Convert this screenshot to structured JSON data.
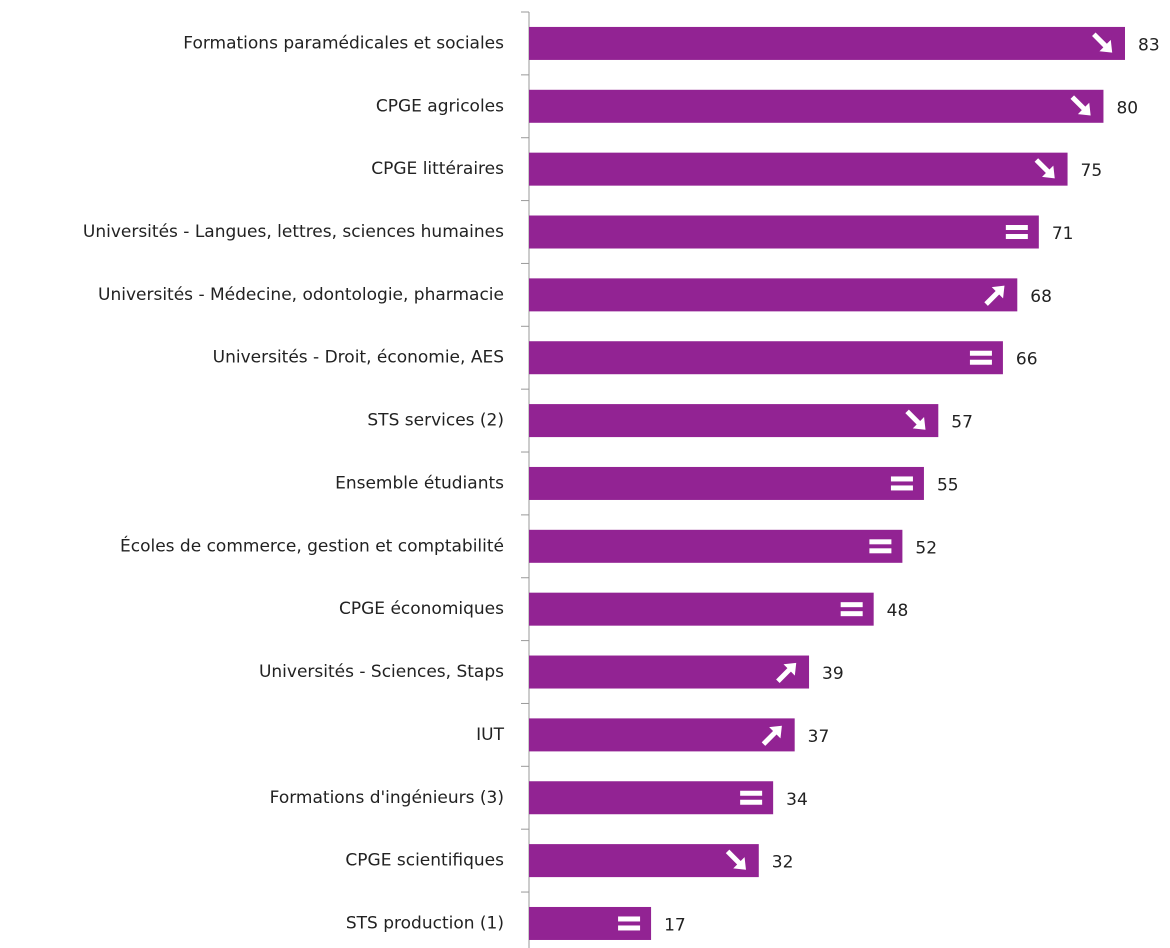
{
  "chart_data": {
    "type": "barh",
    "categories": [
      "Formations paramédicales et sociales",
      "CPGE agricoles",
      "CPGE littéraires",
      "Universités - Langues, lettres, sciences humaines",
      "Universités - Médecine, odontologie, pharmacie",
      "Universités - Droit, économie, AES",
      "STS services (2)",
      "Ensemble étudiants",
      "Écoles de commerce, gestion et comptabilité",
      "CPGE économiques",
      "Universités - Sciences, Staps",
      "IUT",
      "Formations d'ingénieurs (3)",
      "CPGE scientifiques",
      "STS production (1)"
    ],
    "values": [
      83,
      80,
      75,
      71,
      68,
      66,
      57,
      55,
      52,
      48,
      39,
      37,
      34,
      32,
      17
    ],
    "trend": [
      "down",
      "down",
      "down",
      "equal",
      "up",
      "equal",
      "down",
      "equal",
      "equal",
      "equal",
      "up",
      "up",
      "equal",
      "down",
      "equal"
    ],
    "color": "#922393"
  }
}
